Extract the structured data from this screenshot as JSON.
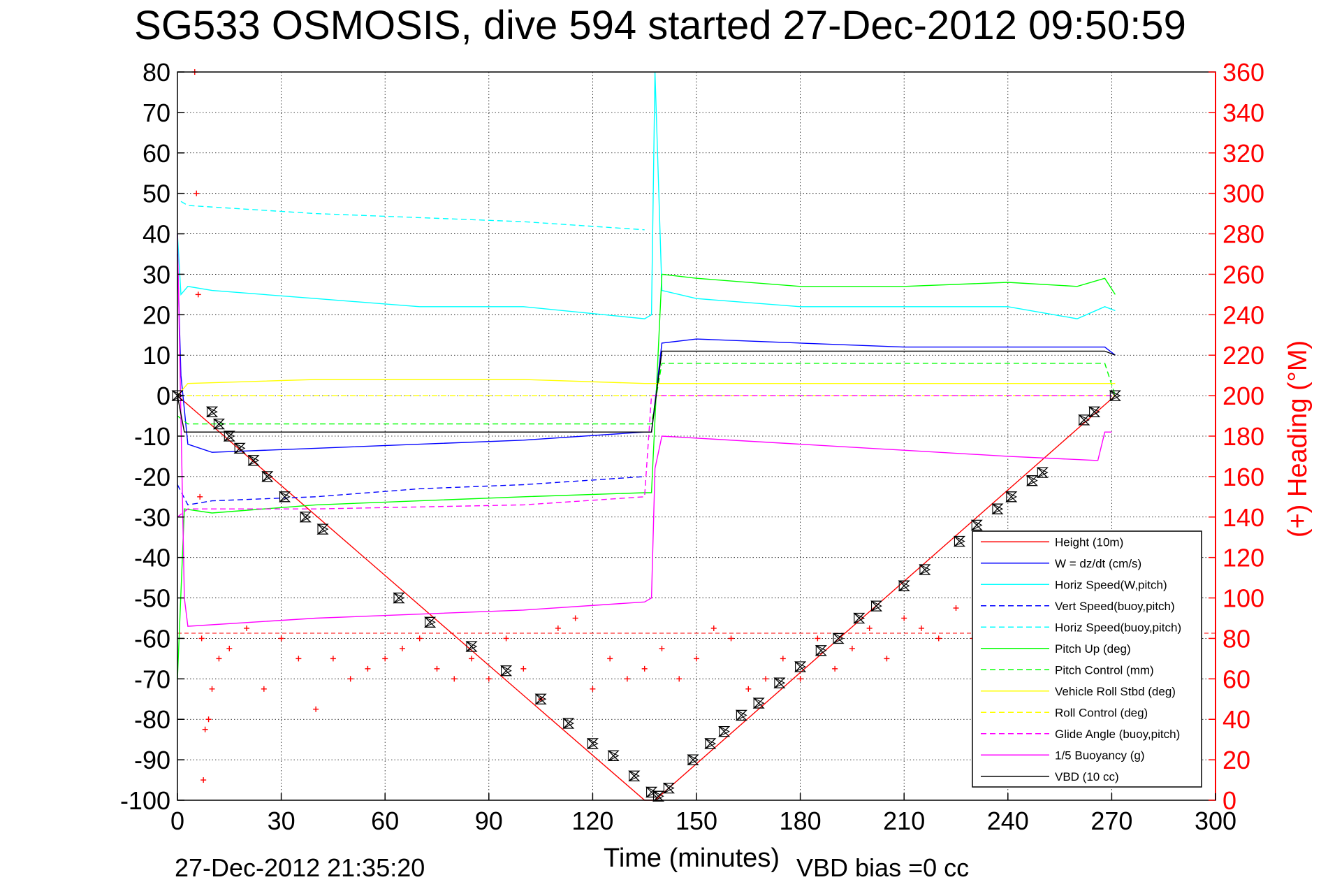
{
  "chart_data": {
    "type": "line",
    "title": "SG533 OSMOSIS, dive 594 started 27-Dec-2012 09:50:59",
    "xlabel": "Time (minutes)",
    "ylabel_right": "(+) Heading (°M)",
    "xlim": [
      0,
      300
    ],
    "ylim": [
      -100,
      80
    ],
    "ylim_right": [
      0,
      360
    ],
    "x_ticks": [
      "0",
      "30",
      "60",
      "90",
      "120",
      "150",
      "180",
      "210",
      "240",
      "270",
      "300"
    ],
    "y_ticks": [
      "80",
      "70",
      "60",
      "50",
      "40",
      "30",
      "20",
      "10",
      "0",
      "-10",
      "-20",
      "-30",
      "-40",
      "-50",
      "-60",
      "-70",
      "-80",
      "-90",
      "-100"
    ],
    "y_right_ticks": [
      "360",
      "340",
      "320",
      "300",
      "280",
      "260",
      "240",
      "220",
      "200",
      "180",
      "160",
      "140",
      "120",
      "100",
      "80",
      "60",
      "40",
      "20",
      "0"
    ],
    "grid": true,
    "legend_position": "bottom-right",
    "footer_left": "27-Dec-2012 21:35:20",
    "footer_right": "VBD bias =0 cc",
    "series": [
      {
        "name": "Height (10m)",
        "color": "#ff0000",
        "style": "solid",
        "x": [
          0,
          135,
          138,
          271
        ],
        "values": [
          0,
          -100,
          -100,
          0
        ]
      },
      {
        "name": "W = dz/dt (cm/s)",
        "color": "#0000ff",
        "style": "solid",
        "x": [
          0,
          1,
          3,
          10,
          40,
          70,
          100,
          135,
          137,
          140,
          150,
          180,
          210,
          240,
          260,
          268,
          271
        ],
        "values": [
          35,
          5,
          -12,
          -14,
          -13,
          -12,
          -11,
          -9,
          -9,
          13,
          14,
          13,
          12,
          12,
          12,
          12,
          10
        ]
      },
      {
        "name": "Horiz Speed(W,pitch)",
        "color": "#00ffff",
        "style": "solid",
        "x": [
          0,
          1,
          3,
          10,
          40,
          70,
          100,
          135,
          137,
          138,
          140,
          150,
          180,
          210,
          240,
          260,
          268,
          271
        ],
        "values": [
          40,
          25,
          27,
          26,
          24,
          22,
          22,
          19,
          20,
          80,
          26,
          24,
          22,
          22,
          22,
          19,
          22,
          21
        ]
      },
      {
        "name": "Vert Speed(buoy,pitch)",
        "color": "#0000ff",
        "style": "dashed",
        "x": [
          0,
          3,
          10,
          40,
          70,
          100,
          135
        ],
        "values": [
          -22,
          -27,
          -26,
          -25,
          -23,
          -22,
          -20
        ]
      },
      {
        "name": "Horiz Speed(buoy,pitch)",
        "color": "#00ffff",
        "style": "dashed",
        "x": [
          1,
          3,
          40,
          70,
          100,
          135
        ],
        "values": [
          48,
          47,
          45,
          44,
          43,
          41
        ]
      },
      {
        "name": "Pitch Up (deg)",
        "color": "#00ff00",
        "style": "solid",
        "x": [
          0,
          2,
          10,
          40,
          70,
          100,
          135,
          137,
          140,
          150,
          180,
          210,
          240,
          260,
          268,
          271
        ],
        "values": [
          -70,
          -28,
          -29,
          -27,
          -26,
          -25,
          -24,
          -24,
          30,
          29,
          27,
          27,
          28,
          27,
          29,
          25
        ]
      },
      {
        "name": "Pitch Control (mm)",
        "color": "#00ff00",
        "style": "dashed",
        "x": [
          0,
          3,
          135,
          137,
          140,
          268,
          271
        ],
        "values": [
          -5,
          -7,
          -7,
          -7,
          8,
          8,
          0
        ]
      },
      {
        "name": "Vehicle Roll Stbd (deg)",
        "color": "#ffff00",
        "style": "solid",
        "x": [
          0,
          3,
          40,
          100,
          135,
          140,
          180,
          240,
          271
        ],
        "values": [
          0,
          3,
          4,
          4,
          3,
          3,
          3,
          3,
          3
        ]
      },
      {
        "name": "Roll Control (deg)",
        "color": "#ffff00",
        "style": "dashed",
        "x": [
          0,
          271
        ],
        "values": [
          0,
          0
        ]
      },
      {
        "name": "Glide Angle (buoy,pitch)",
        "color": "#ff00ff",
        "style": "dashed",
        "x": [
          0,
          3,
          40,
          100,
          135,
          137,
          140,
          271
        ],
        "values": [
          -30,
          -28,
          -28,
          -27,
          -25,
          0,
          0,
          0
        ]
      },
      {
        "name": "1/5 Buoyancy (g)",
        "color": "#ff00ff",
        "style": "solid",
        "x": [
          0,
          2,
          3,
          40,
          100,
          135,
          137,
          138,
          140,
          180,
          240,
          265,
          266,
          268,
          270
        ],
        "values": [
          40,
          -50,
          -57,
          -55,
          -53,
          -51,
          -50,
          -18,
          -10,
          -12,
          -15,
          -16,
          -16,
          -9,
          -9
        ]
      },
      {
        "name": "VBD (10 cc)",
        "color": "#000000",
        "style": "solid",
        "x": [
          0,
          2,
          3,
          135,
          137,
          140,
          268,
          271
        ],
        "values": [
          0,
          -9,
          -9,
          -9,
          -9,
          11,
          11,
          10
        ]
      }
    ],
    "heading": {
      "name": "(+) Heading (°M)",
      "color": "#ff0000",
      "marker": "+",
      "x": [
        5,
        5.5,
        6,
        6.5,
        7,
        7.5,
        8,
        9,
        10,
        12,
        15,
        20,
        25,
        30,
        35,
        40,
        45,
        50,
        55,
        60,
        65,
        70,
        75,
        80,
        85,
        90,
        95,
        100,
        105,
        110,
        115,
        120,
        125,
        130,
        135,
        140,
        145,
        150,
        155,
        160,
        165,
        170,
        175,
        180,
        185,
        190,
        195,
        200,
        205,
        210,
        215,
        220,
        225,
        230,
        235,
        240,
        245,
        250,
        255,
        260,
        265,
        270
      ],
      "values": [
        360,
        300,
        250,
        150,
        80,
        10,
        35,
        40,
        55,
        70,
        75,
        85,
        55,
        80,
        70,
        45,
        70,
        60,
        65,
        70,
        75,
        80,
        65,
        60,
        70,
        60,
        80,
        65,
        50,
        85,
        90,
        55,
        70,
        60,
        65,
        75,
        60,
        70,
        85,
        80,
        55,
        60,
        70,
        60,
        80,
        65,
        75,
        85,
        70,
        90,
        85,
        80,
        95,
        80,
        70,
        75,
        65,
        85,
        80,
        90,
        95,
        85
      ]
    },
    "height_markers": {
      "x": [
        0,
        10,
        12,
        15,
        18,
        22,
        26,
        31,
        37,
        42,
        64,
        73,
        85,
        95,
        105,
        113,
        120,
        126,
        132,
        137,
        139,
        142,
        149,
        154,
        158,
        163,
        168,
        174,
        180,
        186,
        191,
        197,
        202,
        210,
        216,
        226,
        231,
        237,
        241,
        247,
        250,
        262,
        265,
        271
      ],
      "values": [
        0,
        -4,
        -7,
        -10,
        -13,
        -16,
        -20,
        -25,
        -30,
        -33,
        -50,
        -56,
        -62,
        -68,
        -75,
        -81,
        -86,
        -89,
        -94,
        -98,
        -99,
        -97,
        -90,
        -86,
        -83,
        -79,
        -76,
        -71,
        -67,
        -63,
        -60,
        -55,
        -52,
        -47,
        -43,
        -36,
        -32,
        -28,
        -25,
        -21,
        -19,
        -6,
        -4,
        0
      ]
    }
  }
}
